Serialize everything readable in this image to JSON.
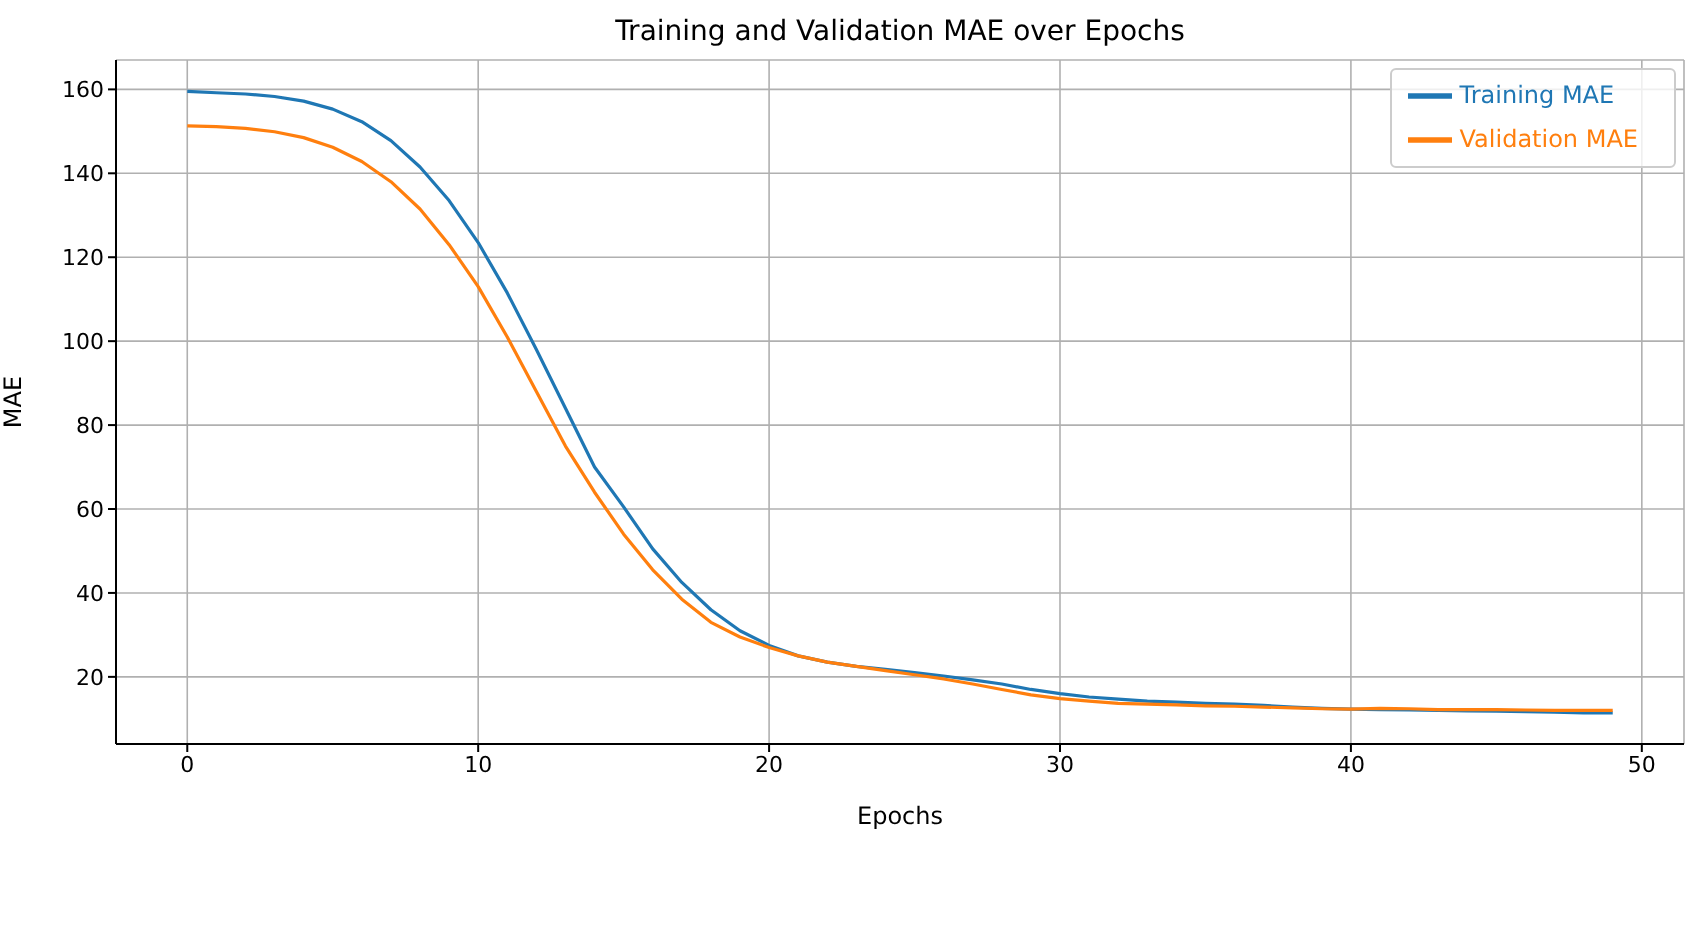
{
  "chart_data": {
    "type": "line",
    "title": "Training and Validation MAE over Epochs",
    "xlabel": "Epochs",
    "ylabel": "MAE",
    "x": [
      0,
      1,
      2,
      3,
      4,
      5,
      6,
      7,
      8,
      9,
      10,
      11,
      12,
      13,
      14,
      15,
      16,
      17,
      18,
      19,
      20,
      21,
      22,
      23,
      24,
      25,
      26,
      27,
      28,
      29,
      30,
      31,
      32,
      33,
      34,
      35,
      36,
      37,
      38,
      39,
      40,
      41,
      42,
      43,
      44,
      45,
      46,
      47,
      48,
      49
    ],
    "series": [
      {
        "name": "Training MAE",
        "color": "#1f77b4",
        "values": [
          159.5,
          159.2,
          158.9,
          158.3,
          157.2,
          155.3,
          152.3,
          147.8,
          141.5,
          133.5,
          123.5,
          111.5,
          98,
          84,
          70,
          60.5,
          50.5,
          42.5,
          36,
          31,
          27.5,
          25,
          23.5,
          22.5,
          21.8,
          21,
          20.2,
          19.3,
          18.3,
          17,
          16,
          15.2,
          14.7,
          14.2,
          14,
          13.7,
          13.5,
          13.2,
          12.8,
          12.5,
          12.3,
          12.2,
          12.1,
          12,
          11.9,
          11.8,
          11.7,
          11.6,
          11.4,
          11.4
        ]
      },
      {
        "name": "Validation MAE",
        "color": "#ff7f0e",
        "values": [
          151.3,
          151.1,
          150.7,
          149.9,
          148.5,
          146.2,
          142.8,
          138,
          131.5,
          123,
          113,
          101,
          88,
          75,
          64,
          54,
          45.5,
          38.5,
          33,
          29.5,
          27,
          25,
          23.5,
          22.5,
          21.5,
          20.5,
          19.5,
          18.3,
          17,
          15.7,
          14.8,
          14.2,
          13.7,
          13.5,
          13.3,
          13.1,
          13,
          12.8,
          12.6,
          12.4,
          12.3,
          12.5,
          12.4,
          12.2,
          12.2,
          12.2,
          12.1,
          12,
          12,
          12
        ]
      }
    ],
    "xlim": [
      -2.45,
      51.45
    ],
    "xticks": [
      0,
      10,
      20,
      30,
      40,
      50
    ],
    "ylim": [
      4,
      167
    ],
    "yticks": [
      20,
      40,
      60,
      80,
      100,
      120,
      140,
      160
    ],
    "grid": true,
    "legend": "top right",
    "marker": "none",
    "line_style": "solid"
  }
}
